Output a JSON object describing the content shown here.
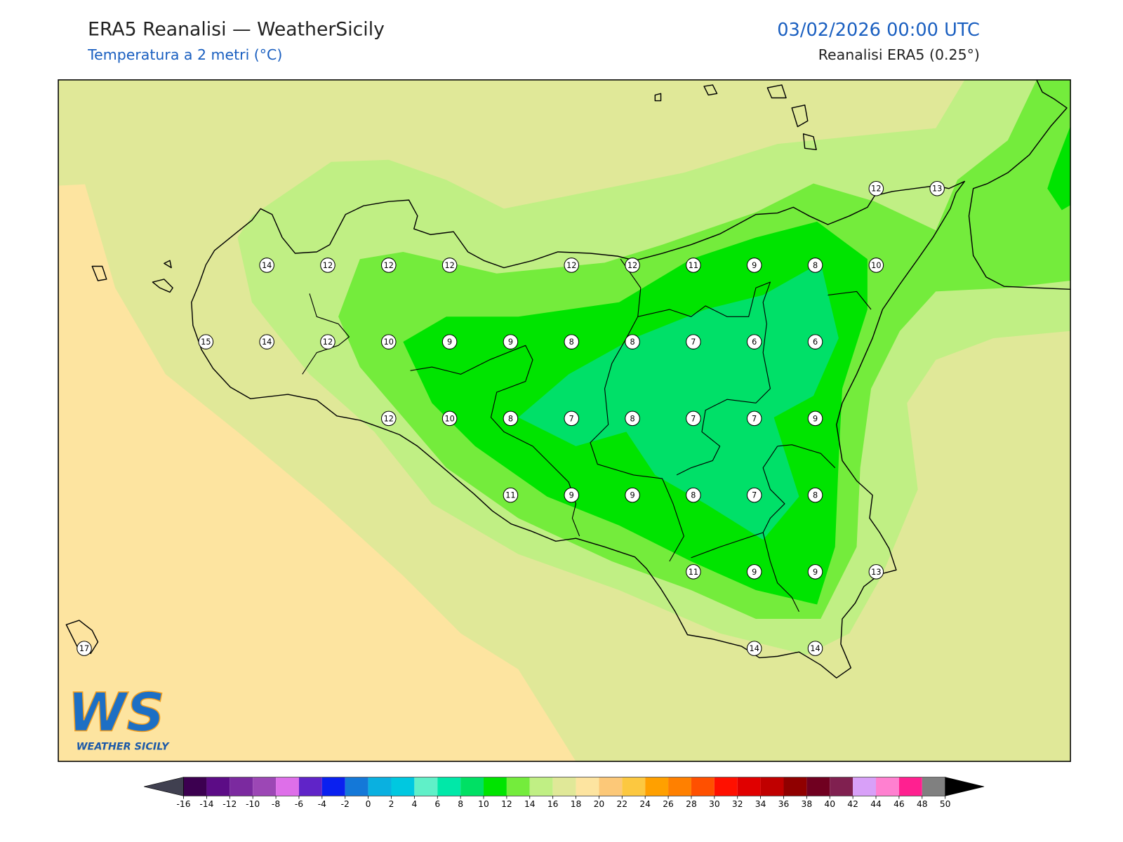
{
  "header": {
    "title": "ERA5 Reanalisi — WeatherSicily",
    "subtitle": "Temperatura a 2 metri (°C)",
    "datetime": "03/02/2026 00:00 UTC",
    "source": "Reanalisi ERA5 (0.25°)"
  },
  "stations": [
    12,
    13,
    14,
    12,
    12,
    12,
    12,
    12,
    11,
    9,
    8,
    10,
    15,
    14,
    12,
    10,
    9,
    9,
    8,
    8,
    7,
    6,
    6,
    12,
    10,
    8,
    7,
    8,
    7,
    7,
    9,
    11,
    9,
    9,
    8,
    7,
    8,
    11,
    9,
    9,
    13,
    17,
    14,
    14
  ],
  "colorbar": {
    "ticks": [
      -16,
      -14,
      -12,
      -10,
      -8,
      -6,
      -4,
      -2,
      0,
      2,
      4,
      6,
      8,
      10,
      12,
      14,
      16,
      18,
      20,
      22,
      24,
      26,
      28,
      30,
      32,
      34,
      36,
      38,
      40,
      42,
      44,
      46,
      48,
      50
    ],
    "colors": [
      "#3c0050",
      "#5c0c86",
      "#7b2a9f",
      "#9c47b5",
      "#de6fe9",
      "#6024c8",
      "#0a20f0",
      "#1478d8",
      "#0ab0e0",
      "#00c8e0",
      "#60f0c8",
      "#00e8a8",
      "#00e064",
      "#00e400",
      "#74ec3c",
      "#c0ef84",
      "#e0e898",
      "#fde4a0",
      "#fcc878",
      "#fcc840",
      "#ffa000",
      "#ff8000",
      "#ff5000",
      "#ff1000",
      "#e00000",
      "#c00000",
      "#900000",
      "#700020",
      "#802050",
      "#d8a0f8",
      "#ff80d0",
      "#ff2090",
      "#808080",
      "#383838"
    ],
    "under": "#404050",
    "over": "#000000"
  },
  "logo": {
    "mark": "WS",
    "name": "WEATHER SICILY"
  }
}
